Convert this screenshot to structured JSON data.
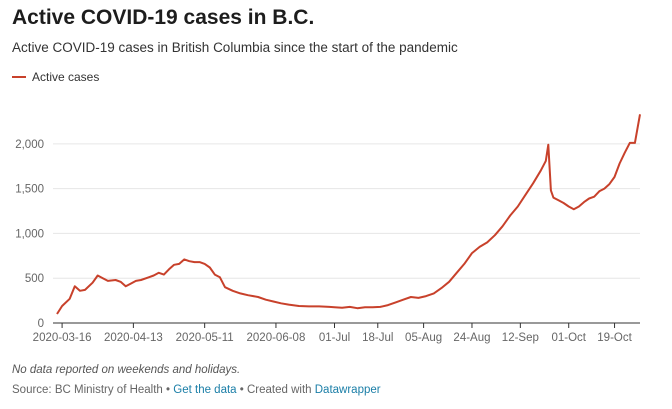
{
  "title": "Active COVID-19 cases in B.C.",
  "subtitle": "Active COVID-19 cases in British Columbia since the start of the pandemic",
  "legend_label": "Active cases",
  "line_color": "#c8412b",
  "note": "No data reported on weekends and holidays.",
  "footer": {
    "source_prefix": "Source: BC Ministry of Health",
    "separator": " • ",
    "get_data": "Get the data",
    "created_with": "Created with",
    "tool": "Datawrapper"
  },
  "chart_data": {
    "type": "line",
    "xlabel": "",
    "ylabel": "",
    "grid": true,
    "legend": "top-left",
    "x_ticks": [
      "2020-03-16",
      "2020-04-13",
      "2020-05-11",
      "2020-06-08",
      "01-Jul",
      "18-Jul",
      "05-Aug",
      "24-Aug",
      "12-Sep",
      "01-Oct",
      "19-Oct"
    ],
    "x_tick_dates": [
      "2020-03-16",
      "2020-04-13",
      "2020-05-11",
      "2020-06-08",
      "2020-07-01",
      "2020-07-18",
      "2020-08-05",
      "2020-08-24",
      "2020-09-12",
      "2020-10-01",
      "2020-10-19"
    ],
    "y_ticks": [
      0,
      500,
      1000,
      1500,
      2000
    ],
    "y_tick_labels": [
      "0",
      "500",
      "1,000",
      "1,500",
      "2,000"
    ],
    "xlim": [
      "2020-03-14",
      "2020-10-29"
    ],
    "ylim": [
      0,
      2400
    ],
    "series": [
      {
        "name": "Active cases",
        "points": [
          [
            "2020-03-14",
            100
          ],
          [
            "2020-03-16",
            190
          ],
          [
            "2020-03-19",
            270
          ],
          [
            "2020-03-21",
            410
          ],
          [
            "2020-03-23",
            360
          ],
          [
            "2020-03-25",
            370
          ],
          [
            "2020-03-28",
            450
          ],
          [
            "2020-03-30",
            530
          ],
          [
            "2020-04-01",
            500
          ],
          [
            "2020-04-03",
            470
          ],
          [
            "2020-04-06",
            480
          ],
          [
            "2020-04-08",
            460
          ],
          [
            "2020-04-10",
            410
          ],
          [
            "2020-04-12",
            440
          ],
          [
            "2020-04-14",
            470
          ],
          [
            "2020-04-16",
            480
          ],
          [
            "2020-04-19",
            510
          ],
          [
            "2020-04-21",
            530
          ],
          [
            "2020-04-23",
            560
          ],
          [
            "2020-04-25",
            540
          ],
          [
            "2020-04-27",
            600
          ],
          [
            "2020-04-29",
            650
          ],
          [
            "2020-05-01",
            660
          ],
          [
            "2020-05-03",
            710
          ],
          [
            "2020-05-05",
            690
          ],
          [
            "2020-05-07",
            680
          ],
          [
            "2020-05-09",
            680
          ],
          [
            "2020-05-11",
            660
          ],
          [
            "2020-05-13",
            620
          ],
          [
            "2020-05-15",
            540
          ],
          [
            "2020-05-17",
            510
          ],
          [
            "2020-05-19",
            400
          ],
          [
            "2020-05-22",
            360
          ],
          [
            "2020-05-25",
            330
          ],
          [
            "2020-05-28",
            310
          ],
          [
            "2020-06-01",
            290
          ],
          [
            "2020-06-04",
            260
          ],
          [
            "2020-06-07",
            240
          ],
          [
            "2020-06-10",
            220
          ],
          [
            "2020-06-13",
            205
          ],
          [
            "2020-06-17",
            190
          ],
          [
            "2020-06-21",
            185
          ],
          [
            "2020-06-25",
            185
          ],
          [
            "2020-06-29",
            180
          ],
          [
            "2020-07-01",
            175
          ],
          [
            "2020-07-04",
            170
          ],
          [
            "2020-07-07",
            180
          ],
          [
            "2020-07-10",
            165
          ],
          [
            "2020-07-13",
            175
          ],
          [
            "2020-07-16",
            175
          ],
          [
            "2020-07-19",
            180
          ],
          [
            "2020-07-22",
            200
          ],
          [
            "2020-07-25",
            230
          ],
          [
            "2020-07-28",
            260
          ],
          [
            "2020-07-31",
            290
          ],
          [
            "2020-08-03",
            280
          ],
          [
            "2020-08-06",
            300
          ],
          [
            "2020-08-09",
            330
          ],
          [
            "2020-08-12",
            390
          ],
          [
            "2020-08-15",
            460
          ],
          [
            "2020-08-18",
            560
          ],
          [
            "2020-08-21",
            660
          ],
          [
            "2020-08-24",
            780
          ],
          [
            "2020-08-27",
            850
          ],
          [
            "2020-08-30",
            900
          ],
          [
            "2020-09-02",
            980
          ],
          [
            "2020-09-05",
            1080
          ],
          [
            "2020-09-08",
            1200
          ],
          [
            "2020-09-11",
            1300
          ],
          [
            "2020-09-14",
            1430
          ],
          [
            "2020-09-17",
            1560
          ],
          [
            "2020-09-20",
            1700
          ],
          [
            "2020-09-22",
            1810
          ],
          [
            "2020-09-23",
            1990
          ],
          [
            "2020-09-24",
            1480
          ],
          [
            "2020-09-25",
            1400
          ],
          [
            "2020-09-27",
            1370
          ],
          [
            "2020-09-29",
            1340
          ],
          [
            "2020-10-01",
            1300
          ],
          [
            "2020-10-03",
            1270
          ],
          [
            "2020-10-05",
            1300
          ],
          [
            "2020-10-07",
            1350
          ],
          [
            "2020-10-09",
            1390
          ],
          [
            "2020-10-11",
            1410
          ],
          [
            "2020-10-13",
            1470
          ],
          [
            "2020-10-15",
            1500
          ],
          [
            "2020-10-17",
            1550
          ],
          [
            "2020-10-19",
            1630
          ],
          [
            "2020-10-21",
            1780
          ],
          [
            "2020-10-23",
            1900
          ],
          [
            "2020-10-25",
            2010
          ],
          [
            "2020-10-27",
            2010
          ],
          [
            "2020-10-29",
            2330
          ]
        ]
      }
    ]
  }
}
